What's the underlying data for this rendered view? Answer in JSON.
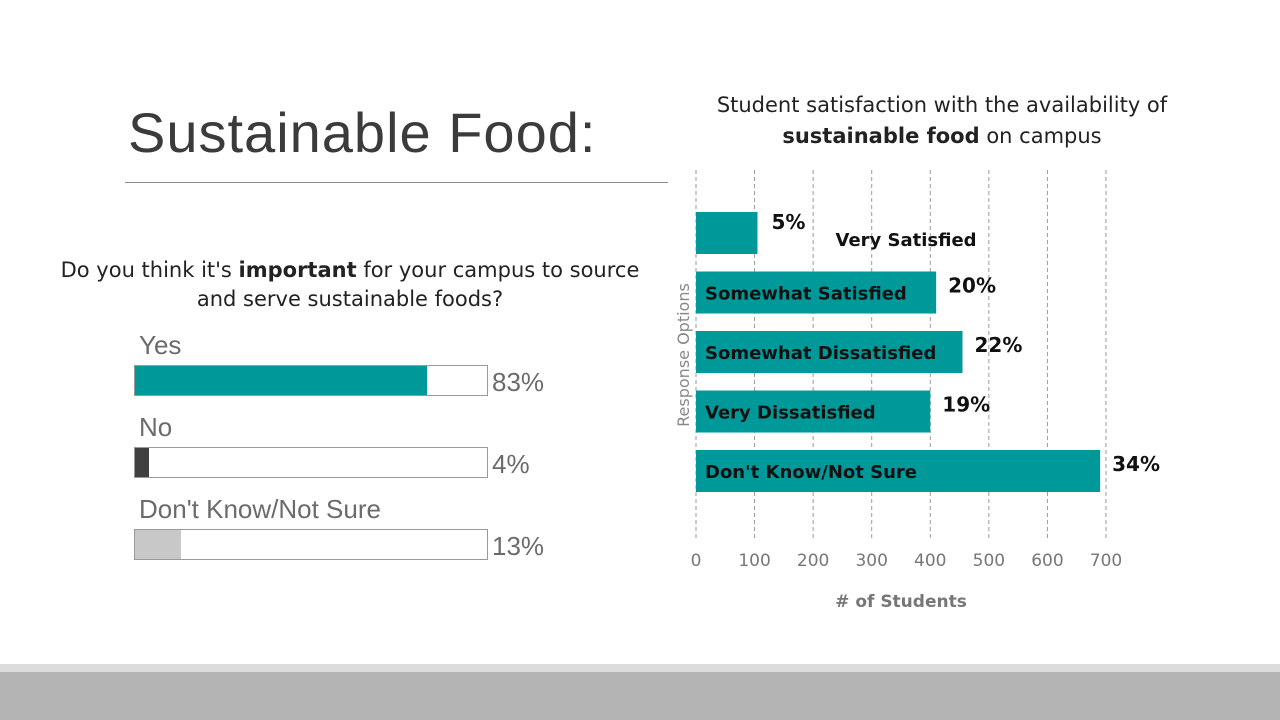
{
  "slide": {
    "title": "Sustainable Food:"
  },
  "question": {
    "text_before": "Do you think it's ",
    "text_bold": "important",
    "text_after": " for your campus to source and serve sustainable foods?"
  },
  "answers": [
    {
      "label": "Yes",
      "percent_label": "83%",
      "fraction": 0.83,
      "color": "#009999"
    },
    {
      "label": "No",
      "percent_label": "4%",
      "fraction": 0.04,
      "color": "#404040"
    },
    {
      "label": "Don't Know/Not Sure",
      "percent_label": "13%",
      "fraction": 0.13,
      "color": "#c8c8c8"
    }
  ],
  "chart_data": {
    "type": "bar",
    "orientation": "horizontal",
    "title_line1": "Student satisfaction with the availability of",
    "title_bold": "sustainable food",
    "title_rest": " on campus",
    "xlabel": "# of Students",
    "ylabel": "Response Options",
    "xlim": [
      0,
      700
    ],
    "xticks": [
      0,
      100,
      200,
      300,
      400,
      500,
      600,
      700
    ],
    "grid": "vertical-dashed",
    "bar_color": "#009999",
    "categories": [
      "Very Satisfied",
      "Somewhat Satisfied",
      "Somewhat Dissatisfied",
      "Very Dissatisfied",
      "Don't Know/Not Sure"
    ],
    "values": [
      105,
      410,
      455,
      400,
      690
    ],
    "percent_labels": [
      "5%",
      "20%",
      "22%",
      "19%",
      "34%"
    ]
  }
}
